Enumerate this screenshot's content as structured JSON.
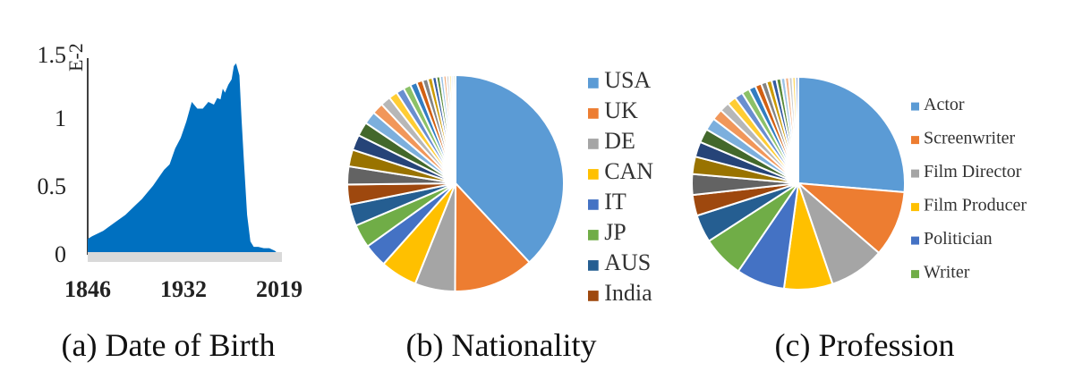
{
  "chart_data": [
    {
      "type": "area",
      "caption": "(a) Date of Birth",
      "y_unit": "E-2",
      "xlim": [
        1846,
        2019
      ],
      "ylim": [
        0,
        1.5
      ],
      "x_tick_labels": [
        "1846",
        "1932",
        "2019"
      ],
      "y_tick_labels": [
        "0",
        "0.5",
        "1",
        "1.5"
      ],
      "series": [
        {
          "x": [
            1846,
            1850,
            1860,
            1870,
            1880,
            1890,
            1895,
            1900,
            1905,
            1910,
            1915,
            1920,
            1925,
            1930,
            1935,
            1940,
            1945,
            1950,
            1955,
            1960,
            1963,
            1966,
            1968,
            1970,
            1973,
            1976,
            1978,
            1980,
            1983,
            1985,
            1987,
            1990,
            1993,
            1996,
            2000,
            2005,
            2010,
            2015,
            2019
          ],
          "y": [
            0.12,
            0.14,
            0.18,
            0.24,
            0.3,
            0.38,
            0.42,
            0.47,
            0.52,
            0.58,
            0.64,
            0.68,
            0.8,
            0.88,
            1.0,
            1.15,
            1.1,
            1.1,
            1.15,
            1.13,
            1.18,
            1.17,
            1.25,
            1.22,
            1.28,
            1.32,
            1.42,
            1.44,
            1.35,
            1.02,
            0.72,
            0.3,
            0.1,
            0.06,
            0.06,
            0.05,
            0.05,
            0.03,
            0.0
          ]
        }
      ]
    },
    {
      "type": "pie",
      "caption": "(b) Nationality",
      "legend_position": "right",
      "legend": [
        "USA",
        "UK",
        "DE",
        "CAN",
        "IT",
        "JP",
        "AUS",
        "India"
      ],
      "values": [
        38,
        12,
        6,
        5.5,
        3.5,
        3.5,
        3.2,
        3,
        2.7,
        2.5,
        2.3,
        2.1,
        1.9,
        1.7,
        1.5,
        1.3,
        1.2,
        1.1,
        1,
        0.9,
        0.8,
        0.7,
        0.6,
        0.55,
        0.5,
        0.45,
        0.4,
        0.35,
        0.3,
        0.3
      ],
      "colors": [
        "#5b9bd5",
        "#ed7d31",
        "#a5a5a5",
        "#ffc000",
        "#4472c4",
        "#70ad47",
        "#255e91",
        "#9e480e",
        "#636363",
        "#997300",
        "#264478",
        "#43682b",
        "#7cafdd",
        "#f1975a",
        "#b7b7b7",
        "#ffcd33",
        "#698ed0",
        "#8cc168",
        "#327dc2",
        "#d26012",
        "#848484",
        "#cc9a00",
        "#335aa1",
        "#5a8a39",
        "#9dc3e6",
        "#f4b183",
        "#c9c9c9",
        "#ffd966",
        "#8faadc",
        "#a9d18e"
      ]
    },
    {
      "type": "pie",
      "caption": "(c) Profession",
      "legend_position": "right",
      "legend": [
        "Actor",
        "Screenwriter",
        "Film Director",
        "Film Producer",
        "Politician",
        "Writer"
      ],
      "values": [
        25,
        9.5,
        8,
        7,
        7,
        6,
        4,
        3,
        3,
        2.5,
        2.2,
        2,
        1.8,
        1.6,
        1.4,
        1.3,
        1.2,
        1.1,
        1,
        0.9,
        0.8,
        0.75,
        0.7,
        0.65,
        0.6,
        0.55,
        0.5,
        0.45,
        0.4
      ],
      "colors": [
        "#5b9bd5",
        "#ed7d31",
        "#a5a5a5",
        "#ffc000",
        "#4472c4",
        "#70ad47",
        "#255e91",
        "#9e480e",
        "#636363",
        "#997300",
        "#264478",
        "#43682b",
        "#7cafdd",
        "#f1975a",
        "#b7b7b7",
        "#ffcd33",
        "#698ed0",
        "#8cc168",
        "#327dc2",
        "#d26012",
        "#848484",
        "#cc9a00",
        "#335aa1",
        "#5a8a39",
        "#9dc3e6",
        "#f4b183",
        "#c9c9c9",
        "#ffd966",
        "#8faadc"
      ]
    }
  ],
  "area_color": "#0070c0",
  "baseline_color": "#d9d9d9"
}
